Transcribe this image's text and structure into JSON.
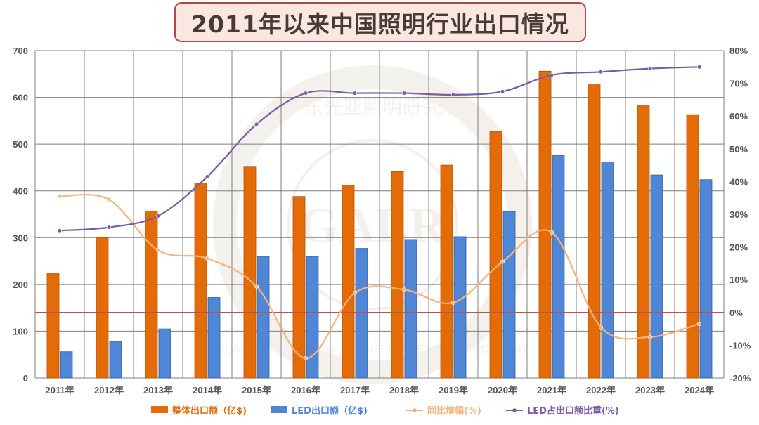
{
  "colors": {
    "total_bar": "#e36c09",
    "led_bar": "#4f86d6",
    "yoy_line": "#f9b27a",
    "share_line": "#7b5aa6",
    "baseline": "#c0504d",
    "grid": "#7f7f7f",
    "title_border": "#b5473f",
    "title_bg": "#fbe7e1"
  },
  "chart_data": {
    "type": "bar+line",
    "title": "2011年以来中国照明行业出口情况",
    "categories": [
      "2011年",
      "2012年",
      "2013年",
      "2014年",
      "2015年",
      "2016年",
      "2017年",
      "2018年",
      "2019年",
      "2020年",
      "2021年",
      "2022年",
      "2023年",
      "2024年"
    ],
    "y_left": {
      "lim": [
        0,
        700
      ],
      "ticks": [
        "0",
        "100",
        "200",
        "300",
        "400",
        "500",
        "600",
        "700"
      ]
    },
    "y_right": {
      "lim": [
        -20,
        80
      ],
      "ticks": [
        "-20%",
        "-10%",
        "0%",
        "10%",
        "20%",
        "30%",
        "40%",
        "50%",
        "60%",
        "70%",
        "80%"
      ]
    },
    "series": [
      {
        "name": "整体出口额（亿$)",
        "type": "bar",
        "axis": "left",
        "values": [
          223,
          300,
          357,
          417,
          451,
          388,
          412,
          441,
          455,
          527,
          656,
          627,
          582,
          563
        ]
      },
      {
        "name": "LED出口额（亿$)",
        "type": "bar",
        "axis": "left",
        "values": [
          56,
          78,
          105,
          172,
          260,
          260,
          277,
          296,
          302,
          356,
          476,
          462,
          434,
          424
        ]
      },
      {
        "name": "同比增幅(%)",
        "type": "line",
        "axis": "right",
        "values": [
          35.5,
          34.5,
          19,
          16.5,
          8,
          -14,
          6,
          7,
          3,
          15.5,
          24.5,
          -4.5,
          -7.5,
          -3.5
        ]
      },
      {
        "name": "LED占出口额比重(%)",
        "type": "line",
        "axis": "right",
        "values": [
          25,
          26,
          29.5,
          41.5,
          57.5,
          67,
          67,
          67,
          66.5,
          67.5,
          72.5,
          73.5,
          74.5,
          75
        ]
      }
    ]
  },
  "watermark": {
    "cn_text": "广东光亚照明研究院",
    "en_text": "GUANGDONG GUANGYA LIGHTING RESEARCH ACADEMY",
    "logo_text": "GALR"
  }
}
